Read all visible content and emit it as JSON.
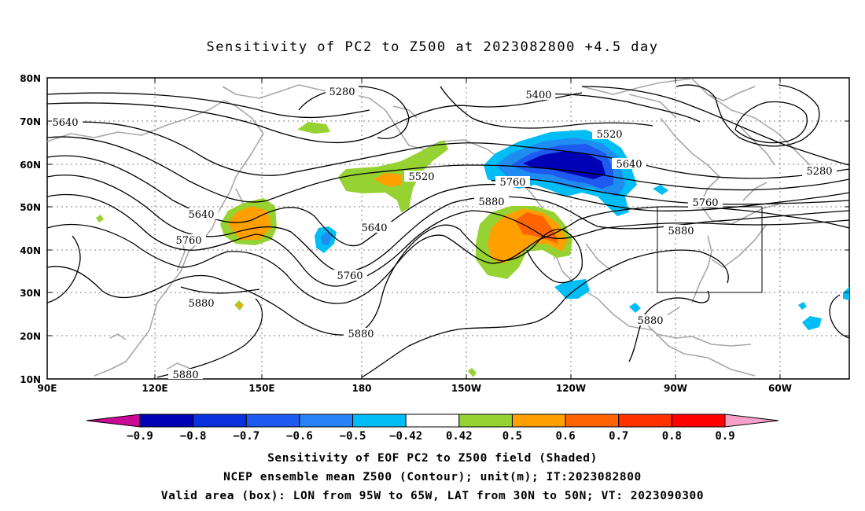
{
  "title": "Sensitivity of PC2 to Z500 at 2023082800 +4.5 day",
  "lat_ticks": [
    "80N",
    "70N",
    "60N",
    "50N",
    "40N",
    "30N",
    "20N",
    "10N"
  ],
  "lon_ticks": [
    "90E",
    "120E",
    "150E",
    "180",
    "150W",
    "120W",
    "90W",
    "60W"
  ],
  "contour_labels": {
    "c5280a": "5280",
    "c5400": "5400",
    "c5640a": "5640",
    "c5520a": "5520",
    "c5640b": "5640",
    "c5520b": "5520",
    "c5760a": "5760",
    "c5640c": "5640",
    "c5880a": "5880",
    "c5760b": "5760",
    "c5640d": "5640",
    "c5760c": "5760",
    "c5880b": "5880",
    "c5880c": "5880",
    "c5760d": "5760",
    "c5880d": "5880",
    "c5880e": "5880",
    "c5880f": "5880",
    "c5280b": "5280"
  },
  "colorbar": {
    "labels": [
      "-0.9",
      "-0.8",
      "-0.7",
      "-0.6",
      "-0.5",
      "-0.42",
      "0.42",
      "0.5",
      "0.6",
      "0.7",
      "0.8",
      "0.9"
    ],
    "colors": [
      "#0000b4",
      "#0a32dc",
      "#1e5af0",
      "#2882f5",
      "#00bef5",
      "#ffffff",
      "#96d232",
      "#ffa000",
      "#ff6400",
      "#ff3200",
      "#ff0000"
    ],
    "low_color": "#c80a96",
    "high_color": "#f5a0c8"
  },
  "shading_colors": {
    "green": "#96d232",
    "orange": "#ffa000",
    "darkorange": "#ff6400",
    "cyan": "#00bef5",
    "lightblue": "#1e8cf0",
    "blue": "#1e5af0",
    "darkblue": "#0000b4"
  },
  "caption": {
    "line1": "Sensitivity of EOF PC2 to Z500 field (Shaded)",
    "line2": "NCEP ensemble mean Z500 (Contour); unit(m); IT:2023082800",
    "line3": "Valid area (box): LON from 95W to 65W, LAT from 30N to 50N; VT: 2023090300"
  }
}
